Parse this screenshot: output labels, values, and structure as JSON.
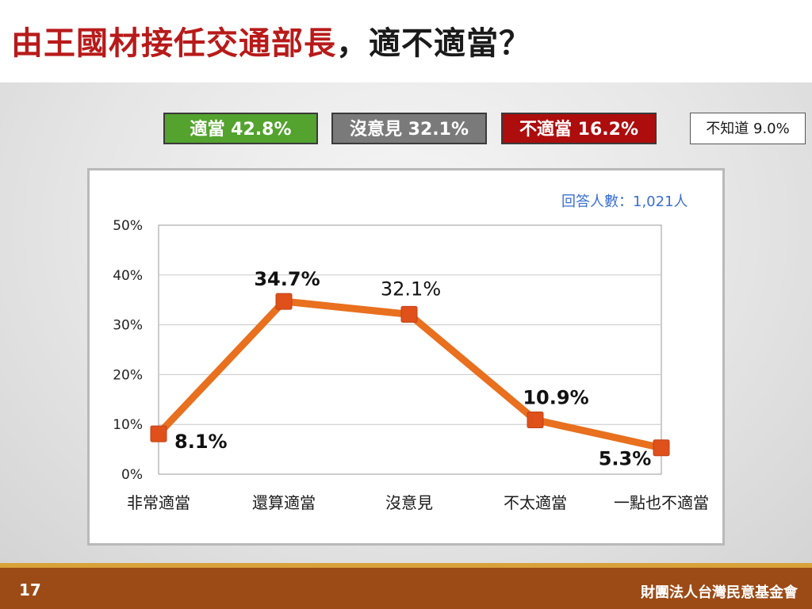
{
  "title": {
    "part1": "由王國材接任交通部長",
    "part2": "，適不適當？"
  },
  "badges": [
    {
      "label": "適當 42.8%",
      "color": "#53a32e"
    },
    {
      "label": "沒意見 32.1%",
      "color": "#7a7a7a"
    },
    {
      "label": "不適當 16.2%",
      "color": "#ad0d0d"
    },
    {
      "label": "不知道 9.0%",
      "color": "#ffffff"
    }
  ],
  "respondents": "回答人數：1,021人",
  "chart_data": {
    "type": "line",
    "categories": [
      "非常適當",
      "還算適當",
      "沒意見",
      "不太適當",
      "一點也不適當"
    ],
    "values": [
      8.1,
      34.7,
      32.1,
      10.9,
      5.3
    ],
    "value_labels": [
      "8.1%",
      "34.7%",
      "32.1%",
      "10.9%",
      "5.3%"
    ],
    "yticks": [
      "0%",
      "10%",
      "20%",
      "30%",
      "40%",
      "50%"
    ],
    "ylim": [
      0,
      50
    ],
    "grid": true,
    "line_color": "#e8701e",
    "marker_color": "#e0501a"
  },
  "footer": {
    "page": "17",
    "org": "財團法人台灣民意基金會"
  }
}
